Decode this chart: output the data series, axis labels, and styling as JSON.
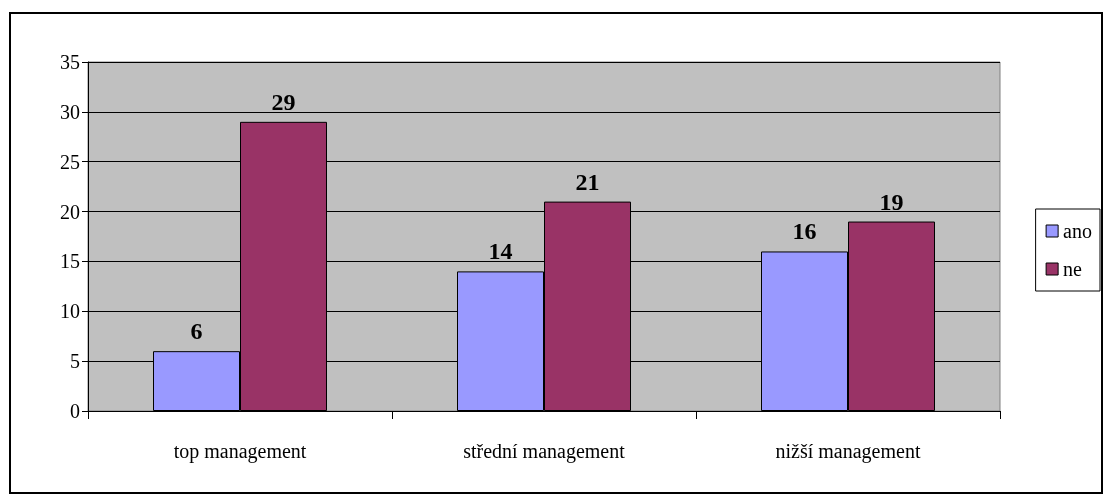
{
  "chart_data": {
    "type": "bar",
    "categories": [
      "top management",
      "střední management",
      "nižší management"
    ],
    "series": [
      {
        "name": "ano",
        "color": "#9999ff",
        "values": [
          6,
          14,
          16
        ]
      },
      {
        "name": "ne",
        "color": "#993366",
        "values": [
          29,
          21,
          19
        ]
      }
    ],
    "ylim": [
      0,
      35
    ],
    "yticks": [
      0,
      5,
      10,
      15,
      20,
      25,
      30,
      35
    ],
    "grid": "y",
    "legend": "right",
    "data_labels": true
  }
}
